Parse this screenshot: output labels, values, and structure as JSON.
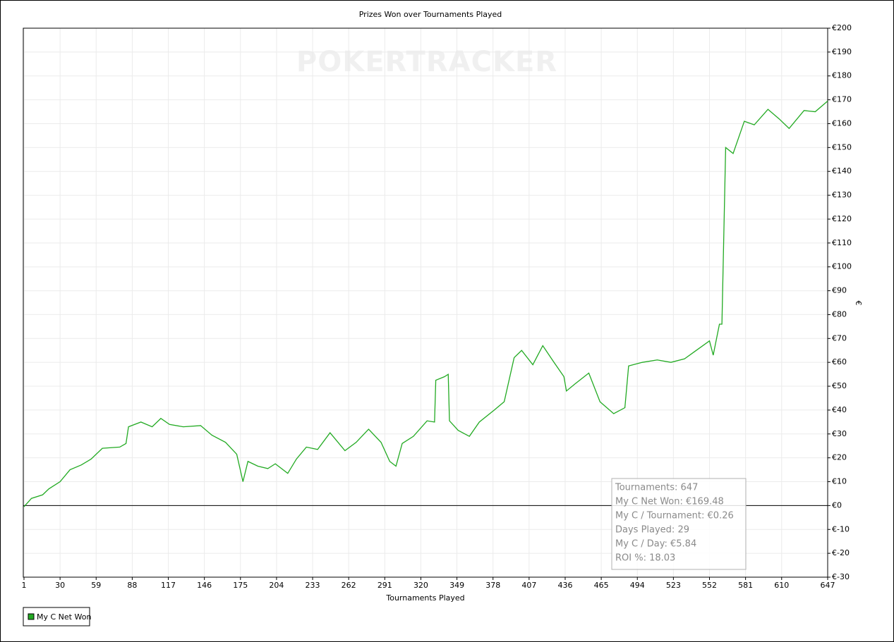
{
  "chart_data": {
    "type": "line",
    "title": "Prizes Won over Tournaments Played",
    "watermark": "POKERTRACKER",
    "xlabel": "Tournaments Played",
    "ylabel": "€",
    "x": [
      1,
      7,
      16,
      21,
      30,
      38,
      47,
      55,
      64,
      78,
      83,
      85,
      95,
      104,
      111,
      118,
      129,
      143,
      152,
      163,
      172,
      177,
      181,
      189,
      197,
      203,
      213,
      220,
      228,
      237,
      247,
      259,
      268,
      278,
      288,
      295,
      300,
      305,
      314,
      325,
      331,
      332,
      339,
      342,
      343,
      350,
      359,
      367,
      379,
      387,
      395,
      401,
      410,
      418,
      427,
      435,
      437,
      444,
      455,
      464,
      475,
      484,
      487,
      498,
      510,
      521,
      532,
      540,
      552,
      555,
      560,
      562,
      565,
      571,
      580,
      588,
      599,
      608,
      616,
      628,
      637,
      647
    ],
    "series": [
      {
        "name": "My C Net Won",
        "color": "#22aa22",
        "values": [
          -0.5,
          3,
          4.5,
          7,
          10,
          15,
          17,
          19.5,
          24,
          24.5,
          26,
          33,
          35,
          33,
          36.5,
          34,
          33,
          33.5,
          29.5,
          26.5,
          21.5,
          10,
          18.5,
          16.5,
          15.5,
          17.5,
          13.5,
          19.5,
          24.5,
          23.5,
          30.5,
          23,
          26.5,
          32,
          26.5,
          18.5,
          16.5,
          26,
          29,
          35.5,
          35,
          52.5,
          54,
          55,
          35.5,
          31.5,
          29,
          35,
          40,
          43.5,
          62,
          65,
          59,
          67,
          60,
          54,
          48,
          51,
          55.5,
          43.5,
          38.5,
          41,
          58.5,
          60,
          61,
          60,
          61.5,
          64.5,
          69,
          63,
          76,
          76,
          150,
          147.5,
          161,
          159.5,
          166,
          162,
          158,
          165.5,
          165,
          169.48
        ]
      }
    ],
    "xlim": [
      1,
      647
    ],
    "xticks": [
      1,
      30,
      59,
      88,
      117,
      146,
      175,
      204,
      233,
      262,
      291,
      320,
      349,
      378,
      407,
      436,
      465,
      494,
      523,
      552,
      581,
      610,
      647
    ],
    "ylim": [
      -30,
      200
    ],
    "yticks": [
      {
        "value": -30,
        "label": "€-30"
      },
      {
        "value": -20,
        "label": "€-20"
      },
      {
        "value": -10,
        "label": "€-10"
      },
      {
        "value": 0,
        "label": "€0"
      },
      {
        "value": 10,
        "label": "€10"
      },
      {
        "value": 20,
        "label": "€20"
      },
      {
        "value": 30,
        "label": "€30"
      },
      {
        "value": 40,
        "label": "€40"
      },
      {
        "value": 50,
        "label": "€50"
      },
      {
        "value": 60,
        "label": "€60"
      },
      {
        "value": 70,
        "label": "€70"
      },
      {
        "value": 80,
        "label": "€80"
      },
      {
        "value": 90,
        "label": "€90"
      },
      {
        "value": 100,
        "label": "€100"
      },
      {
        "value": 110,
        "label": "€110"
      },
      {
        "value": 120,
        "label": "€120"
      },
      {
        "value": 130,
        "label": "€130"
      },
      {
        "value": 140,
        "label": "€140"
      },
      {
        "value": 150,
        "label": "€150"
      },
      {
        "value": 160,
        "label": "€160"
      },
      {
        "value": 170,
        "label": "€170"
      },
      {
        "value": 180,
        "label": "€180"
      },
      {
        "value": 190,
        "label": "€190"
      },
      {
        "value": 200,
        "label": "€200"
      }
    ],
    "grid": true,
    "legend": "bottom-left",
    "annotations": [
      "Tournaments: 647",
      "My C Net Won: €169.48",
      "My C / Tournament: €0.26",
      "Days Played: 29",
      "My C / Day: €5.84",
      "ROI %: 18.03"
    ]
  }
}
